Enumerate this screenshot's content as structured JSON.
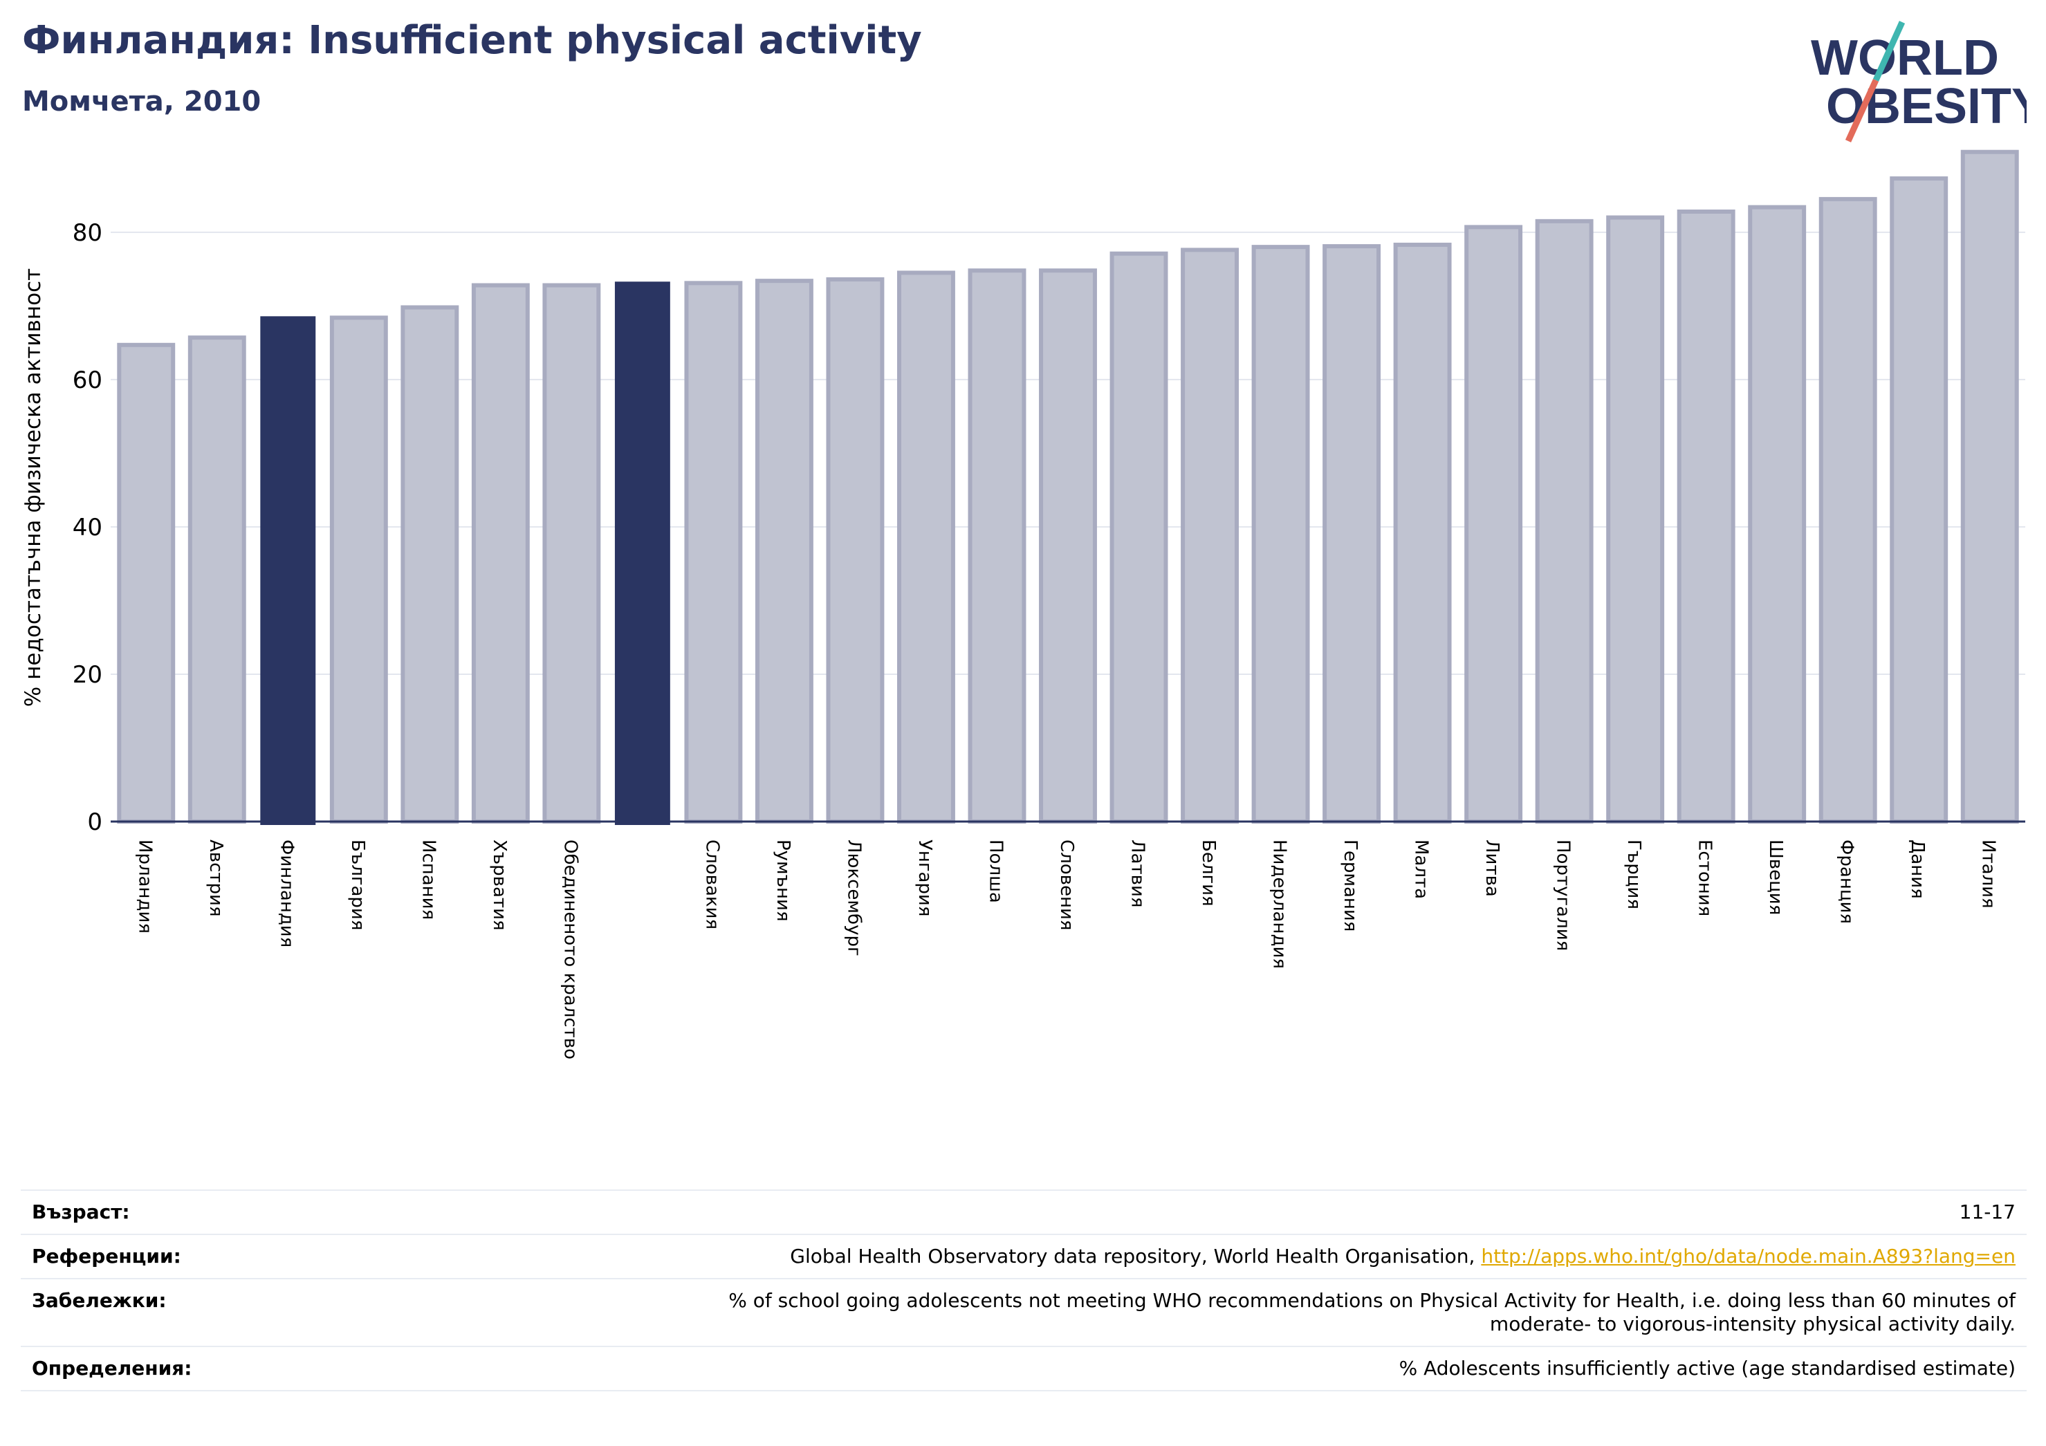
{
  "header": {
    "title": "Финландия: Insufficient physical activity",
    "subtitle": "Момчета, 2010"
  },
  "logo": {
    "line1": "WORLD",
    "line2": "OBESITY"
  },
  "colors": {
    "highlight": "#2a3562",
    "bar": "#c0c3d1",
    "bar_edge": "#a8abc0",
    "title": "#2a3562",
    "link": "#e0a800"
  },
  "chart_data": {
    "type": "bar",
    "ylabel": "% недостатъчна физическа активност",
    "xlabel": "",
    "ylim": [
      0,
      92
    ],
    "yticks": [
      0,
      20,
      40,
      60,
      80
    ],
    "grid": true,
    "categories": [
      "Ирландия",
      "Австрия",
      "Финландия",
      "България",
      "Испания",
      "Хърватия",
      "Обединеното кралство",
      "",
      "Словакия",
      "Румъния",
      "Люксембург",
      "Унгария",
      "Полша",
      "Словения",
      "Латвия",
      "Белгия",
      "Нидерландия",
      "Германия",
      "Малта",
      "Литва",
      "Португалия",
      "Гърция",
      "Естония",
      "Швеция",
      "Франция",
      "Дания",
      "Италия"
    ],
    "values": [
      64.7,
      65.7,
      68.5,
      68.4,
      69.8,
      72.8,
      72.8,
      73.2,
      73.1,
      73.4,
      73.6,
      74.5,
      74.8,
      74.8,
      77.1,
      77.6,
      78.0,
      78.1,
      78.3,
      80.7,
      81.5,
      82.0,
      82.8,
      83.4,
      84.5,
      87.3,
      90.9
    ],
    "highlighted": [
      2,
      7
    ]
  },
  "info": {
    "age_label": "Възраст:",
    "age_value": "11-17",
    "ref_label": "Референции:",
    "ref_text": "Global Health Observatory data repository, World Health Organisation, ",
    "ref_link": "http://apps.who.int/gho/data/node.main.A893?lang=en",
    "notes_label": "Забележки:",
    "notes_line1": "% of school going adolescents not meeting WHO recommendations on Physical Activity for Health, i.e. doing less than 60 minutes of",
    "notes_line2": "moderate- to vigorous-intensity physical activity daily.",
    "def_label": "Определения:",
    "def_value": "% Adolescents insufficiently active (age standardised estimate)"
  }
}
